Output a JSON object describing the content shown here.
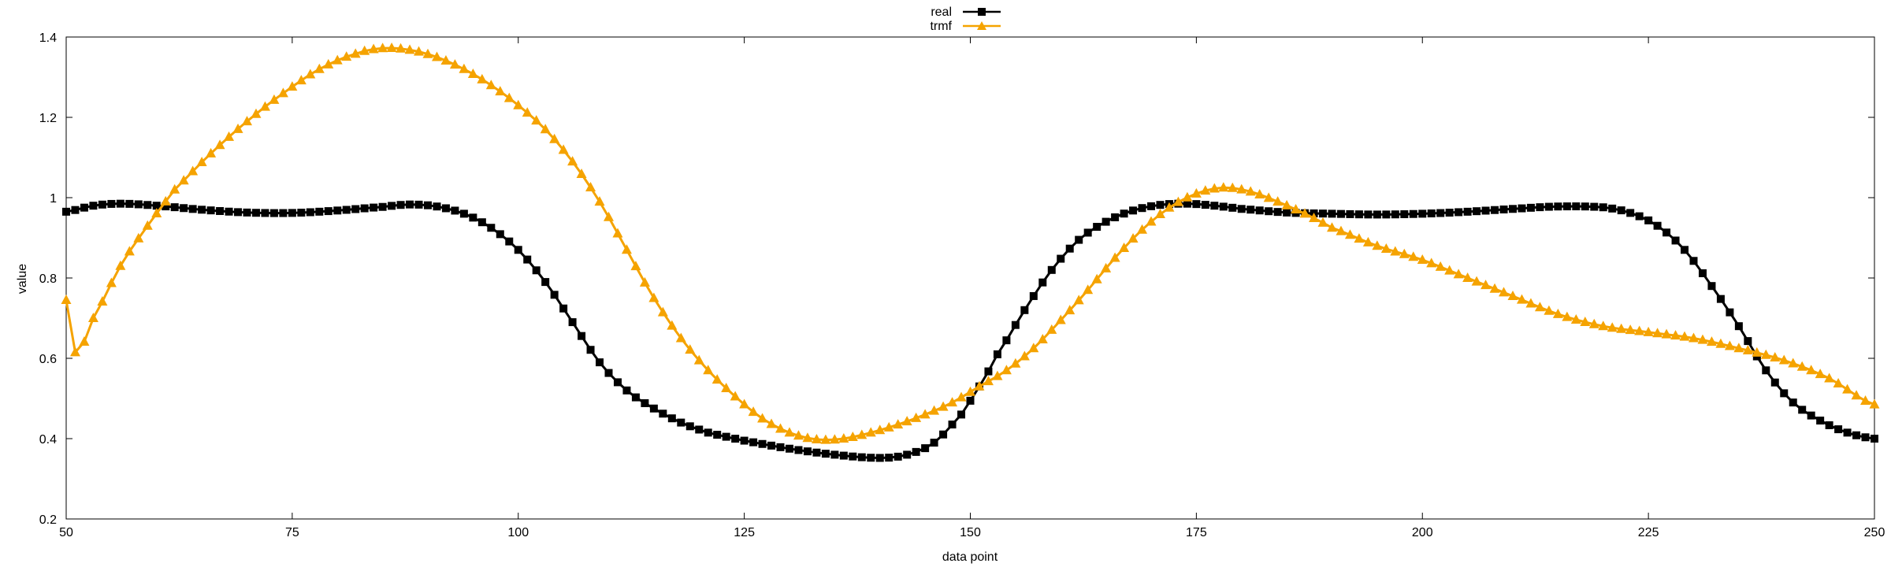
{
  "chart_data": {
    "type": "line",
    "title": "",
    "xlabel": "data point",
    "ylabel": "value",
    "xlim": [
      50,
      250
    ],
    "ylim": [
      0.2,
      1.4
    ],
    "xticks": [
      50,
      75,
      100,
      125,
      150,
      175,
      200,
      225,
      250
    ],
    "yticks": [
      0.2,
      0.4,
      0.6,
      0.8,
      1,
      1.2,
      1.4
    ],
    "grid": false,
    "legend_position": "top-center",
    "series": [
      {
        "name": "real",
        "color": "#000000",
        "marker": "square",
        "points": [
          [
            50,
            0.965
          ],
          [
            53,
            0.98
          ],
          [
            56,
            0.985
          ],
          [
            60,
            0.98
          ],
          [
            65,
            0.97
          ],
          [
            70,
            0.963
          ],
          [
            75,
            0.962
          ],
          [
            80,
            0.968
          ],
          [
            85,
            0.977
          ],
          [
            88,
            0.983
          ],
          [
            91,
            0.978
          ],
          [
            94,
            0.96
          ],
          [
            97,
            0.925
          ],
          [
            100,
            0.87
          ],
          [
            103,
            0.79
          ],
          [
            106,
            0.69
          ],
          [
            109,
            0.59
          ],
          [
            112,
            0.52
          ],
          [
            115,
            0.475
          ],
          [
            118,
            0.44
          ],
          [
            121,
            0.415
          ],
          [
            125,
            0.395
          ],
          [
            130,
            0.375
          ],
          [
            135,
            0.36
          ],
          [
            140,
            0.352
          ],
          [
            143,
            0.36
          ],
          [
            146,
            0.39
          ],
          [
            149,
            0.46
          ],
          [
            151,
            0.53
          ],
          [
            153,
            0.61
          ],
          [
            156,
            0.72
          ],
          [
            159,
            0.82
          ],
          [
            162,
            0.895
          ],
          [
            165,
            0.94
          ],
          [
            168,
            0.968
          ],
          [
            171,
            0.982
          ],
          [
            174,
            0.985
          ],
          [
            177,
            0.98
          ],
          [
            180,
            0.972
          ],
          [
            185,
            0.963
          ],
          [
            190,
            0.96
          ],
          [
            195,
            0.958
          ],
          [
            200,
            0.96
          ],
          [
            205,
            0.965
          ],
          [
            210,
            0.972
          ],
          [
            215,
            0.978
          ],
          [
            220,
            0.976
          ],
          [
            223,
            0.962
          ],
          [
            226,
            0.93
          ],
          [
            229,
            0.87
          ],
          [
            232,
            0.78
          ],
          [
            235,
            0.68
          ],
          [
            238,
            0.57
          ],
          [
            241,
            0.49
          ],
          [
            244,
            0.445
          ],
          [
            247,
            0.415
          ],
          [
            250,
            0.4
          ]
        ]
      },
      {
        "name": "trmf",
        "color": "#f5a300",
        "marker": "triangle",
        "points": [
          [
            50,
            0.745
          ],
          [
            51,
            0.615
          ],
          [
            53,
            0.7
          ],
          [
            56,
            0.83
          ],
          [
            59,
            0.93
          ],
          [
            62,
            1.02
          ],
          [
            66,
            1.11
          ],
          [
            70,
            1.19
          ],
          [
            74,
            1.26
          ],
          [
            78,
            1.32
          ],
          [
            82,
            1.358
          ],
          [
            85,
            1.372
          ],
          [
            88,
            1.368
          ],
          [
            91,
            1.35
          ],
          [
            94,
            1.32
          ],
          [
            97,
            1.28
          ],
          [
            100,
            1.23
          ],
          [
            103,
            1.17
          ],
          [
            106,
            1.09
          ],
          [
            109,
            0.99
          ],
          [
            112,
            0.87
          ],
          [
            115,
            0.75
          ],
          [
            118,
            0.65
          ],
          [
            121,
            0.57
          ],
          [
            124,
            0.505
          ],
          [
            127,
            0.45
          ],
          [
            130,
            0.415
          ],
          [
            133,
            0.398
          ],
          [
            136,
            0.4
          ],
          [
            139,
            0.415
          ],
          [
            142,
            0.435
          ],
          [
            145,
            0.46
          ],
          [
            148,
            0.49
          ],
          [
            151,
            0.53
          ],
          [
            154,
            0.57
          ],
          [
            157,
            0.625
          ],
          [
            160,
            0.695
          ],
          [
            163,
            0.77
          ],
          [
            166,
            0.85
          ],
          [
            169,
            0.92
          ],
          [
            172,
            0.975
          ],
          [
            175,
            1.01
          ],
          [
            178,
            1.025
          ],
          [
            181,
            1.015
          ],
          [
            184,
            0.99
          ],
          [
            187,
            0.96
          ],
          [
            190,
            0.925
          ],
          [
            195,
            0.88
          ],
          [
            200,
            0.845
          ],
          [
            205,
            0.8
          ],
          [
            210,
            0.755
          ],
          [
            215,
            0.71
          ],
          [
            220,
            0.68
          ],
          [
            225,
            0.665
          ],
          [
            230,
            0.65
          ],
          [
            235,
            0.625
          ],
          [
            240,
            0.595
          ],
          [
            245,
            0.55
          ],
          [
            250,
            0.485
          ]
        ]
      }
    ]
  }
}
